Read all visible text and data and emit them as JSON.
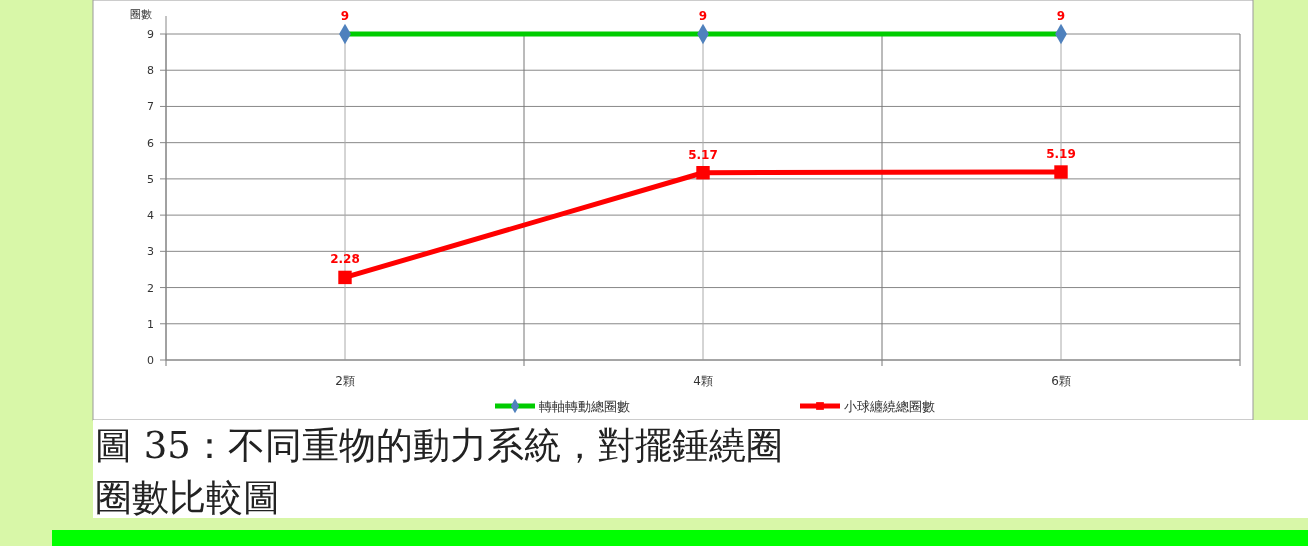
{
  "chart_data": {
    "type": "line",
    "title": "圖 35：不同重物的動力系統，對擺錘繞圈圈數比較圖",
    "ylabel": "圈數",
    "categories": [
      "2顆",
      "4顆",
      "6顆"
    ],
    "series": [
      {
        "name": "轉軸轉動總圈數",
        "color": "#00cc00",
        "marker": "diamond",
        "values": [
          9,
          9,
          9
        ]
      },
      {
        "name": "小球纏繞總圈數",
        "color": "#ff0000",
        "marker": "square",
        "values": [
          2.28,
          5.17,
          5.19
        ]
      }
    ],
    "ylim": [
      0,
      9
    ],
    "yticks": [
      0,
      1,
      2,
      3,
      4,
      5,
      6,
      7,
      8,
      9
    ],
    "grid": true,
    "legend": "bottom",
    "data_labels": true
  }
}
